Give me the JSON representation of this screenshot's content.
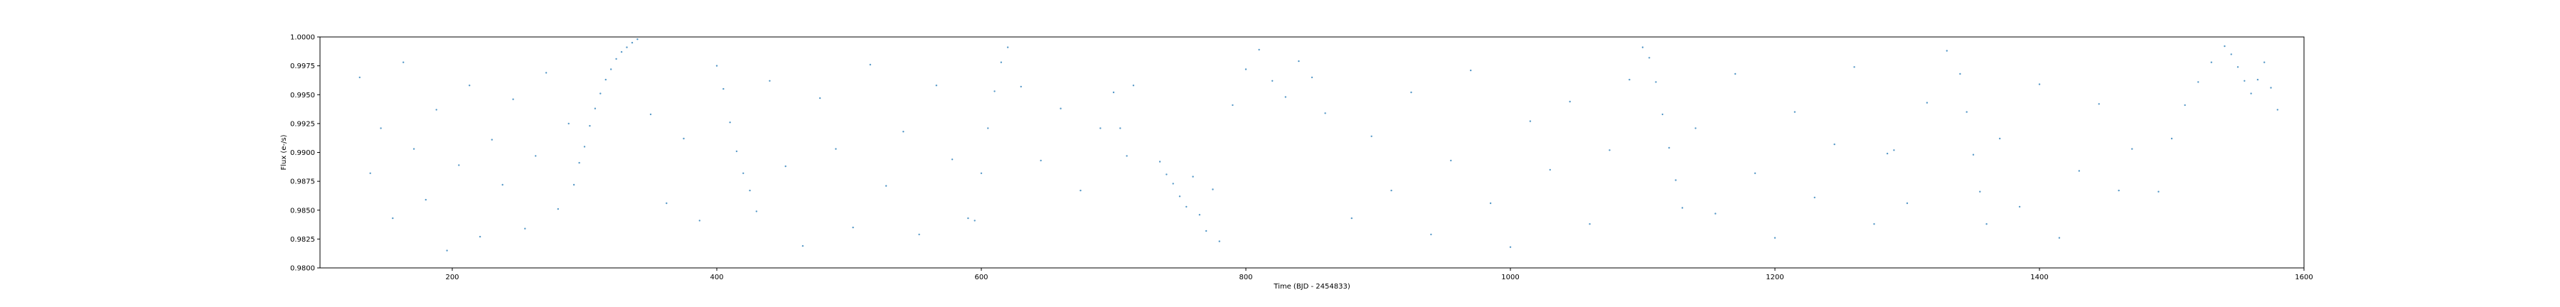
{
  "chart_data": {
    "type": "scatter",
    "title": "",
    "xlabel": "Time (BJD - 2454833)",
    "ylabel": "Flux (e-/s)",
    "xlim": [
      100,
      1600
    ],
    "ylim": [
      0.98,
      1.0
    ],
    "x_ticks": [
      "200",
      "400",
      "600",
      "800",
      "1000",
      "1200",
      "1400",
      "1600"
    ],
    "y_ticks": [
      "0.9800",
      "0.9825",
      "0.9850",
      "0.9875",
      "0.9900",
      "0.9925",
      "0.9950",
      "0.9975",
      "1.0000"
    ],
    "grid": false,
    "legend": "none",
    "marker_color": "#1f77b4",
    "series": [
      {
        "description_free": true,
        "segments": [
          {
            "x": [
              130,
              138,
              146,
              155,
              163,
              171,
              180,
              188,
              196,
              205,
              213,
              221,
              230,
              238,
              246,
              255,
              263,
              271,
              280,
              288
            ],
            "y": [
              0.9965,
              0.9882,
              0.9921,
              0.9843,
              0.9978,
              0.9903,
              0.9859,
              0.9937,
              0.9815,
              0.9889,
              0.9958,
              0.9827,
              0.9911,
              0.9872,
              0.9946,
              0.9834,
              0.9897,
              0.9969,
              0.9851,
              0.9925
            ]
          },
          {
            "x": [
              292,
              296,
              300,
              304,
              308,
              312,
              316,
              320,
              324,
              328,
              332,
              336,
              340
            ],
            "y": [
              0.9872,
              0.9891,
              0.9905,
              0.9923,
              0.9938,
              0.9951,
              0.9963,
              0.9972,
              0.9981,
              0.9987,
              0.9991,
              0.9995,
              0.9998
            ]
          },
          {
            "x": [
              350,
              362,
              375,
              387,
              400,
              405,
              410,
              415,
              420,
              425,
              430,
              440,
              452,
              465,
              478,
              490,
              503,
              516,
              528,
              541,
              553,
              566,
              578,
              590
            ],
            "y": [
              0.9933,
              0.9856,
              0.9912,
              0.9841,
              0.9975,
              0.9955,
              0.9926,
              0.9901,
              0.9882,
              0.9867,
              0.9849,
              0.9962,
              0.9888,
              0.9819,
              0.9947,
              0.9903,
              0.9835,
              0.9976,
              0.9871,
              0.9918,
              0.9829,
              0.9958,
              0.9894,
              0.9843
            ]
          },
          {
            "x": [
              595,
              600,
              605,
              610,
              615,
              620,
              630,
              645,
              660,
              675,
              690,
              700,
              705,
              710,
              715
            ],
            "y": [
              0.9841,
              0.9882,
              0.9921,
              0.9953,
              0.9978,
              0.9991,
              0.9957,
              0.9893,
              0.9938,
              0.9867,
              0.9921,
              0.9952,
              0.9921,
              0.9897,
              0.9958
            ]
          },
          {
            "x": [
              735,
              740,
              745,
              750,
              755,
              760,
              765,
              770,
              775,
              780,
              790,
              800,
              810,
              820,
              830,
              840,
              850,
              860
            ],
            "y": [
              0.9892,
              0.9881,
              0.9873,
              0.9862,
              0.9853,
              0.9879,
              0.9846,
              0.9832,
              0.9868,
              0.9823,
              0.9941,
              0.9972,
              0.9989,
              0.9962,
              0.9948,
              0.9979,
              0.9965,
              0.9934
            ]
          },
          {
            "x": [
              880,
              895,
              910,
              925,
              940,
              955,
              970,
              985,
              1000,
              1015,
              1030,
              1045,
              1060,
              1075,
              1090,
              1100,
              1105,
              1110,
              1115,
              1120,
              1125,
              1130
            ],
            "y": [
              0.9843,
              0.9914,
              0.9867,
              0.9952,
              0.9829,
              0.9893,
              0.9971,
              0.9856,
              0.9818,
              0.9927,
              0.9885,
              0.9944,
              0.9838,
              0.9902,
              0.9963,
              0.9991,
              0.9982,
              0.9961,
              0.9933,
              0.9904,
              0.9876,
              0.9852
            ]
          },
          {
            "x": [
              1140,
              1155,
              1170,
              1185,
              1200,
              1215,
              1230,
              1245,
              1260,
              1275,
              1285,
              1290,
              1300,
              1315,
              1330,
              1340,
              1345,
              1350,
              1355,
              1360
            ],
            "y": [
              0.9921,
              0.9847,
              0.9968,
              0.9882,
              0.9826,
              0.9935,
              0.9861,
              0.9907,
              0.9974,
              0.9838,
              0.9899,
              0.9902,
              0.9856,
              0.9943,
              0.9988,
              0.9968,
              0.9935,
              0.9898,
              0.9866,
              0.9838
            ]
          },
          {
            "x": [
              1370,
              1385,
              1400,
              1415,
              1430,
              1445,
              1460,
              1470
            ],
            "y": [
              0.9912,
              0.9853,
              0.9959,
              0.9826,
              0.9884,
              0.9942,
              0.9867,
              0.9903
            ]
          },
          {
            "x": [
              1490,
              1500,
              1510,
              1520,
              1530,
              1540,
              1545,
              1550,
              1555,
              1560,
              1565,
              1570,
              1575,
              1580
            ],
            "y": [
              0.9866,
              0.9912,
              0.9941,
              0.9961,
              0.9978,
              0.9992,
              0.9985,
              0.9974,
              0.9962,
              0.9951,
              0.9963,
              0.9978,
              0.9956,
              0.9937
            ]
          }
        ]
      }
    ]
  }
}
